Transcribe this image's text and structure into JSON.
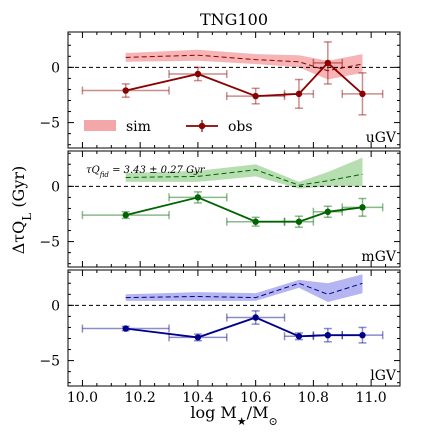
{
  "chart_data": {
    "type": "line",
    "title": "TNG100",
    "xlabel": "log M★/M⊙",
    "ylabel": "ΔτQ_L (Gyr)",
    "xlim": [
      9.95,
      11.1
    ],
    "xticks": [
      10.0,
      10.2,
      10.4,
      10.6,
      10.8,
      11.0
    ],
    "xtick_labels": [
      "10.0",
      "10.2",
      "10.4",
      "10.6",
      "10.8",
      "11.0"
    ],
    "legend": {
      "placement": "lower-left",
      "panel": "uGV",
      "entries": [
        "sim",
        "obs"
      ]
    },
    "panels": [
      {
        "label": "uGV",
        "ylim": [
          -7.3,
          3.2
        ],
        "yticks": [
          0,
          -5
        ],
        "ytick_labels": [
          "0",
          "−5"
        ],
        "sim_color": "#f4a7a8",
        "obs_color": "#8b0000",
        "sim": {
          "x": [
            10.15,
            10.4,
            10.6,
            10.75,
            10.85,
            10.97
          ],
          "median": [
            0.9,
            1.1,
            0.7,
            0.5,
            -0.3,
            0.3
          ],
          "lower": [
            0.5,
            0.6,
            0.3,
            0.0,
            -1.1,
            -0.5
          ],
          "upper": [
            1.3,
            1.6,
            1.2,
            1.1,
            0.6,
            1.2
          ]
        },
        "obs": {
          "x": [
            10.15,
            10.4,
            10.6,
            10.75,
            10.85,
            10.97
          ],
          "y": [
            -2.1,
            -0.6,
            -2.6,
            -2.4,
            0.4,
            -2.4
          ],
          "yerr": [
            0.6,
            0.6,
            0.7,
            1.3,
            1.9,
            1.9
          ],
          "xerr": [
            0.15,
            0.1,
            0.1,
            0.05,
            0.05,
            0.07
          ]
        }
      },
      {
        "label": "mGV",
        "ylim": [
          -7.3,
          3.2
        ],
        "yticks": [
          0,
          -5
        ],
        "ytick_labels": [
          "0",
          "−5"
        ],
        "annotation": "τQ_fid = 3.43 ± 0.27 Gyr",
        "sim_color": "#a9d8a2",
        "obs_color": "#006400",
        "sim": {
          "x": [
            10.15,
            10.4,
            10.6,
            10.75,
            10.85,
            10.97
          ],
          "median": [
            0.8,
            0.9,
            1.5,
            0.1,
            0.5,
            1.1
          ],
          "lower": [
            0.4,
            0.4,
            0.9,
            -0.2,
            0.0,
            0.0
          ],
          "upper": [
            1.2,
            1.4,
            2.0,
            0.4,
            1.3,
            2.6
          ]
        },
        "obs": {
          "x": [
            10.15,
            10.4,
            10.6,
            10.75,
            10.85,
            10.97
          ],
          "y": [
            -2.6,
            -1.0,
            -3.2,
            -3.2,
            -2.3,
            -1.9
          ],
          "yerr": [
            0.3,
            0.5,
            0.4,
            0.5,
            0.5,
            0.8
          ],
          "xerr": [
            0.15,
            0.1,
            0.1,
            0.05,
            0.05,
            0.07
          ]
        }
      },
      {
        "label": "lGV",
        "ylim": [
          -7.3,
          3.2
        ],
        "yticks": [
          0,
          -5
        ],
        "ytick_labels": [
          "0",
          "−5"
        ],
        "sim_color": "#a8a8ee",
        "obs_color": "#00008b",
        "sim": {
          "x": [
            10.15,
            10.4,
            10.6,
            10.75,
            10.85,
            10.97
          ],
          "median": [
            0.7,
            0.8,
            0.7,
            2.0,
            1.0,
            2.0
          ],
          "lower": [
            0.4,
            0.4,
            0.4,
            1.6,
            0.3,
            1.1
          ],
          "upper": [
            1.0,
            1.2,
            1.1,
            2.3,
            2.0,
            2.8
          ]
        },
        "obs": {
          "x": [
            10.15,
            10.4,
            10.6,
            10.75,
            10.85,
            10.97
          ],
          "y": [
            -2.1,
            -2.9,
            -1.1,
            -2.8,
            -2.7,
            -2.7
          ],
          "yerr": [
            0.2,
            0.3,
            0.6,
            0.3,
            0.6,
            0.7
          ],
          "xerr": [
            0.15,
            0.1,
            0.1,
            0.05,
            0.05,
            0.07
          ]
        }
      }
    ]
  }
}
